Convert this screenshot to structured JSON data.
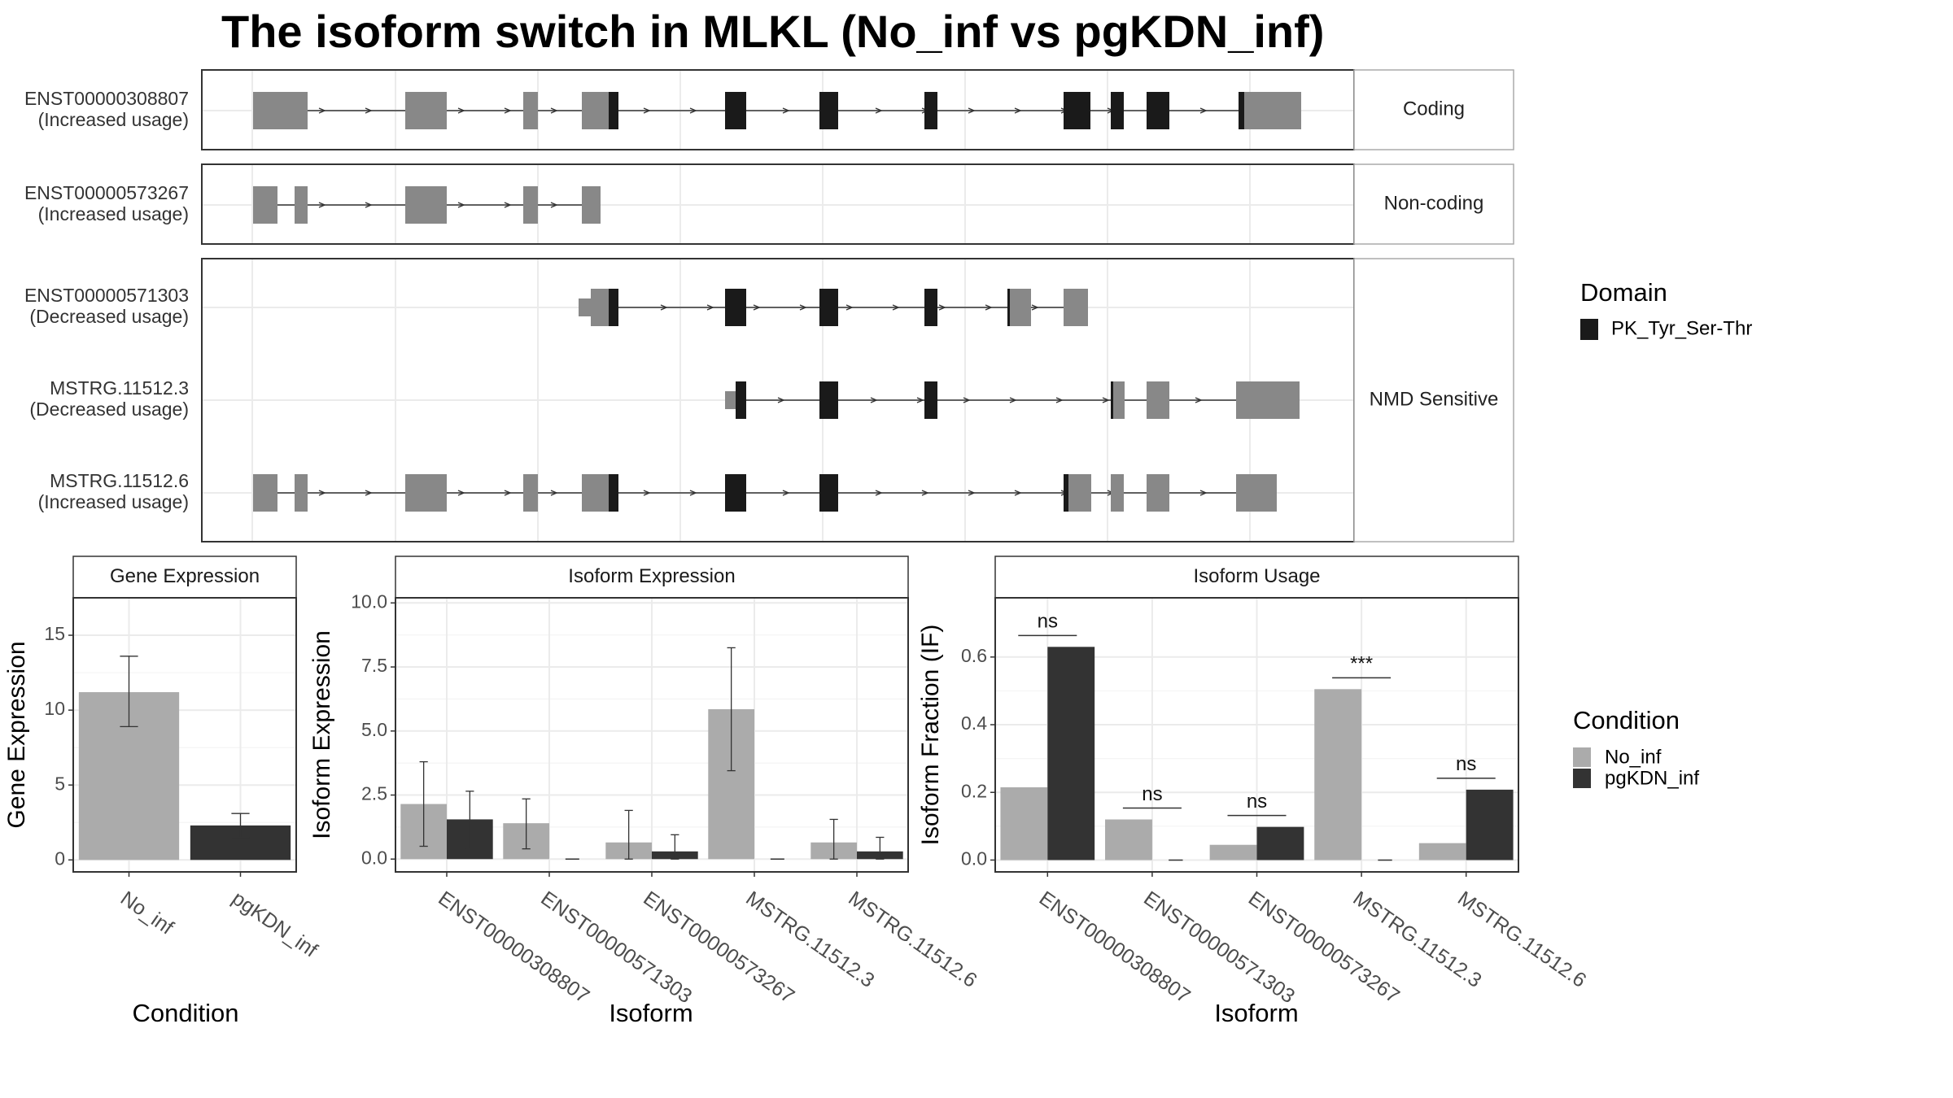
{
  "title": "The isoform switch in MLKL (No_inf vs pgKDN_inf)",
  "colors": {
    "no_inf": "#ababab",
    "pgkdn_inf": "#333333",
    "utr": "#888888",
    "domain": "#1a1a1a"
  },
  "structure_panels": [
    {
      "label": "Coding",
      "transcripts": [
        {
          "id": "ENST00000308807",
          "usage": "(Increased usage)"
        }
      ]
    },
    {
      "label": "Non-coding",
      "transcripts": [
        {
          "id": "ENST00000573267",
          "usage": "(Increased usage)"
        }
      ]
    },
    {
      "label": "NMD Sensitive",
      "transcripts": [
        {
          "id": "ENST00000571303",
          "usage": "(Decreased usage)"
        },
        {
          "id": "MSTRG.11512.3",
          "usage": "(Decreased usage)"
        },
        {
          "id": "MSTRG.11512.6",
          "usage": "(Increased usage)"
        }
      ]
    }
  ],
  "legend_domain": {
    "title": "Domain",
    "items": [
      {
        "label": "PK_Tyr_Ser-Thr",
        "color": "#1a1a1a"
      }
    ]
  },
  "legend_condition": {
    "title": "Condition",
    "items": [
      {
        "label": "No_inf",
        "color": "#ababab"
      },
      {
        "label": "pgKDN_inf",
        "color": "#333333"
      }
    ]
  },
  "chart_data": [
    {
      "type": "bar",
      "title": "Gene Expression",
      "xlabel": "Condition",
      "ylabel": "Gene Expression",
      "categories": [
        "No_inf",
        "pgKDN_inf"
      ],
      "values": [
        11.2,
        2.3
      ],
      "errors": [
        [
          8.9,
          13.6
        ],
        [
          1.5,
          3.1
        ]
      ],
      "ylim": [
        -0.8,
        17.5
      ],
      "yticks": [
        "0",
        "5",
        "10",
        "15"
      ],
      "grid": true
    },
    {
      "type": "bar",
      "title": "Isoform Expression",
      "xlabel": "Isoform",
      "ylabel": "Isoform Expression",
      "categories": [
        "ENST00000308807",
        "ENST00000571303",
        "ENST00000573267",
        "MSTRG.11512.3",
        "MSTRG.11512.6"
      ],
      "series": [
        {
          "name": "No_inf",
          "values": [
            2.15,
            1.4,
            0.65,
            5.85,
            0.65
          ],
          "errors": [
            [
              0.5,
              3.8
            ],
            [
              0.4,
              2.35
            ],
            [
              0.0,
              1.9
            ],
            [
              3.45,
              8.25
            ],
            [
              0.0,
              1.55
            ]
          ]
        },
        {
          "name": "pgKDN_inf",
          "values": [
            1.55,
            0.0,
            0.3,
            0.0,
            0.3
          ],
          "errors": [
            [
              0.4,
              2.65
            ],
            [
              0.0,
              0.0
            ],
            [
              0.0,
              0.95
            ],
            [
              0.0,
              0.0
            ],
            [
              0.0,
              0.85
            ]
          ]
        }
      ],
      "ylim": [
        -0.5,
        10.2
      ],
      "yticks": [
        "0.0",
        "2.5",
        "5.0",
        "7.5",
        "10.0"
      ],
      "grid": true
    },
    {
      "type": "bar",
      "title": "Isoform Usage",
      "xlabel": "Isoform",
      "ylabel": "Isoform Fraction (IF)",
      "categories": [
        "ENST00000308807",
        "ENST00000571303",
        "ENST00000573267",
        "MSTRG.11512.3",
        "MSTRG.11512.6"
      ],
      "series": [
        {
          "name": "No_inf",
          "values": [
            0.215,
            0.12,
            0.045,
            0.505,
            0.05
          ]
        },
        {
          "name": "pgKDN_inf",
          "values": [
            0.63,
            0.0,
            0.098,
            0.0,
            0.208
          ]
        }
      ],
      "significance": [
        "ns",
        "ns",
        "ns",
        "***",
        "ns"
      ],
      "ylim": [
        -0.035,
        0.775
      ],
      "yticks": [
        "0.0",
        "0.2",
        "0.4",
        "0.6"
      ],
      "grid": true
    }
  ]
}
